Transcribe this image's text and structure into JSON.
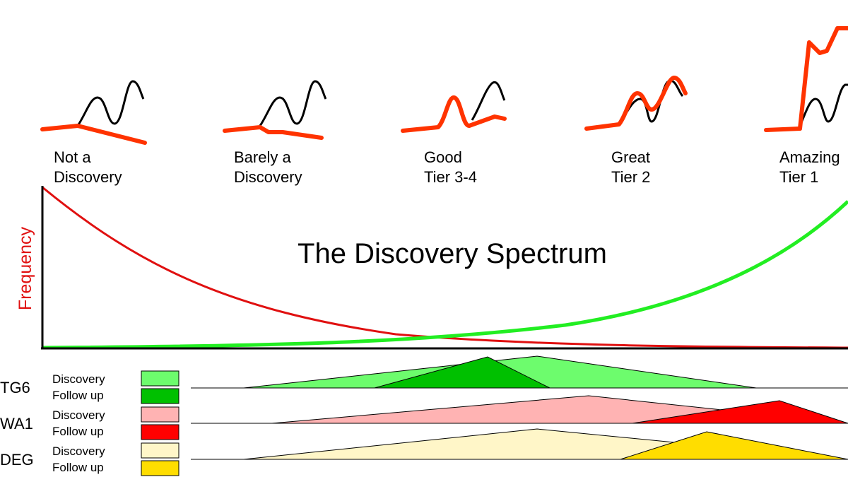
{
  "title": "The Discovery Spectrum",
  "y_axis_label": "Frequency",
  "stages": [
    {
      "line1": "Not a",
      "line2": "Discovery"
    },
    {
      "line1": "Barely a",
      "line2": "Discovery"
    },
    {
      "line1": "Good",
      "line2": "Tier 3-4"
    },
    {
      "line1": "Great",
      "line2": "Tier 2"
    },
    {
      "line1": "Amazing",
      "line2": "Tier 1"
    }
  ],
  "rows": [
    {
      "label": "TG6",
      "discovery": "Discovery",
      "follow_up": "Follow up"
    },
    {
      "label": "WA1",
      "discovery": "Discovery",
      "follow_up": "Follow up"
    },
    {
      "label": "DEG",
      "discovery": "Discovery",
      "follow_up": "Follow up"
    }
  ]
}
